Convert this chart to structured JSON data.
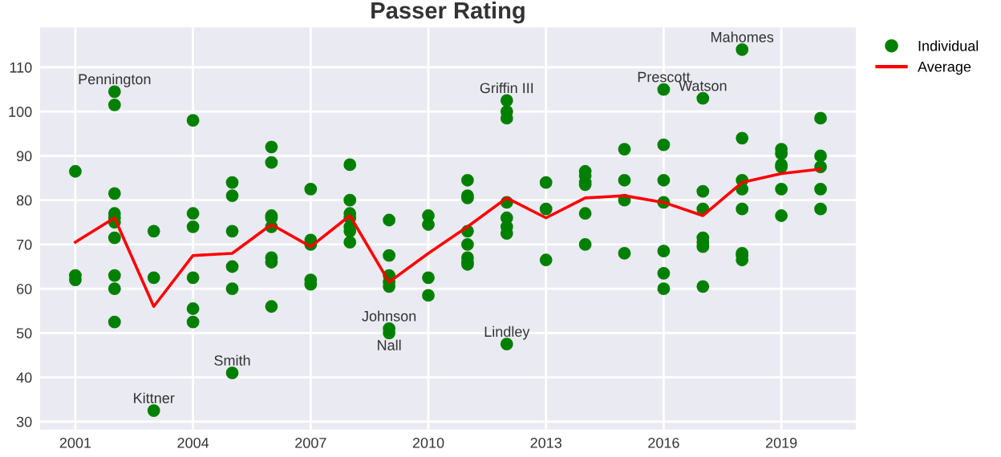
{
  "chart_data": {
    "type": "scatter",
    "title": "Passer Rating",
    "series": [
      {
        "name": "Individual",
        "type": "scatter",
        "color": "#008000",
        "marker": "circle",
        "x": [
          2001,
          2001,
          2001,
          2002,
          2002,
          2002,
          2002,
          2002,
          2002,
          2002,
          2002,
          2002,
          2002,
          2003,
          2003,
          2003,
          2004,
          2004,
          2004,
          2004,
          2004,
          2004,
          2005,
          2005,
          2005,
          2005,
          2005,
          2005,
          2006,
          2006,
          2006,
          2006,
          2006,
          2006,
          2006,
          2006,
          2007,
          2007,
          2007,
          2007,
          2007,
          2008,
          2008,
          2008,
          2008,
          2008,
          2008,
          2008,
          2009,
          2009,
          2009,
          2009,
          2009,
          2009,
          2009,
          2010,
          2010,
          2010,
          2010,
          2011,
          2011,
          2011,
          2011,
          2011,
          2011,
          2011,
          2011,
          2012,
          2012,
          2012,
          2012,
          2012,
          2012,
          2012,
          2012,
          2013,
          2013,
          2013,
          2014,
          2014,
          2014,
          2014,
          2014,
          2014,
          2015,
          2015,
          2015,
          2015,
          2016,
          2016,
          2016,
          2016,
          2016,
          2016,
          2016,
          2017,
          2017,
          2017,
          2017,
          2017,
          2017,
          2017,
          2018,
          2018,
          2018,
          2018,
          2018,
          2018,
          2018,
          2018,
          2019,
          2019,
          2019,
          2019,
          2019,
          2019,
          2020,
          2020,
          2020,
          2020,
          2020
        ],
        "values": [
          86.5,
          63,
          62,
          104.5,
          101.5,
          81.5,
          77,
          76,
          75,
          71.5,
          63,
          60,
          52.5,
          73,
          62.5,
          32.5,
          98,
          77,
          74,
          62.5,
          55.5,
          52.5,
          84,
          81,
          73,
          65,
          60,
          41,
          92,
          88.5,
          76.5,
          76,
          74,
          67,
          66,
          56,
          82.5,
          71,
          70,
          62,
          61,
          88,
          80,
          77,
          76,
          74,
          73,
          70.5,
          75.5,
          67.5,
          63,
          61.5,
          60.5,
          51,
          50,
          76.5,
          74.5,
          62.5,
          58.5,
          84.5,
          81,
          80.5,
          73,
          70,
          67,
          66,
          65.5,
          102.5,
          100,
          98.5,
          79.5,
          76,
          74,
          72.5,
          47.5,
          84,
          78,
          66.5,
          86.5,
          85.5,
          84,
          83.5,
          77,
          70,
          91.5,
          84.5,
          80,
          68,
          105,
          92.5,
          84.5,
          79.5,
          68.5,
          63.5,
          60,
          103,
          82,
          78,
          71.5,
          70.5,
          69.5,
          60.5,
          114,
          94,
          84.5,
          82.5,
          78,
          68,
          67.5,
          66.5,
          91.5,
          90.5,
          88,
          87.5,
          82.5,
          76.5,
          98.5,
          90,
          87.5,
          82.5,
          78
        ]
      },
      {
        "name": "Average",
        "type": "line",
        "color": "#ff0000",
        "marker": "none",
        "line_style": "solid",
        "x": [
          2001,
          2002,
          2003,
          2004,
          2005,
          2006,
          2007,
          2008,
          2009,
          2010,
          2011,
          2012,
          2013,
          2014,
          2015,
          2016,
          2017,
          2018,
          2019,
          2020
        ],
        "values": [
          70.5,
          76,
          56,
          67.5,
          68,
          74.5,
          69.5,
          76.5,
          61.5,
          68,
          74,
          80.5,
          76,
          80.5,
          81,
          79.5,
          76.5,
          84,
          86,
          87
        ]
      }
    ],
    "annotations": [
      {
        "text": "Pennington",
        "x": 2002,
        "y": 104.5
      },
      {
        "text": "Kittner",
        "x": 2003,
        "y": 32.5
      },
      {
        "text": "Smith",
        "x": 2005,
        "y": 41
      },
      {
        "text": "Johnson",
        "x": 2009,
        "y": 51
      },
      {
        "text": "Nall",
        "x": 2009,
        "y": 50
      },
      {
        "text": "Griffin III",
        "x": 2012,
        "y": 102.5
      },
      {
        "text": "Lindley",
        "x": 2012,
        "y": 47.5
      },
      {
        "text": "Prescott",
        "x": 2016,
        "y": 105
      },
      {
        "text": "Watson",
        "x": 2017,
        "y": 103
      },
      {
        "text": "Mahomes",
        "x": 2018,
        "y": 114
      }
    ],
    "xlim": [
      2000.1,
      2020.9
    ],
    "xticks": [
      2001,
      2004,
      2007,
      2010,
      2013,
      2016,
      2019
    ],
    "ylim": [
      28.2,
      119
    ],
    "yticks": [
      30,
      40,
      50,
      60,
      70,
      80,
      90,
      100,
      110
    ],
    "grid": true,
    "legend": "top right"
  }
}
